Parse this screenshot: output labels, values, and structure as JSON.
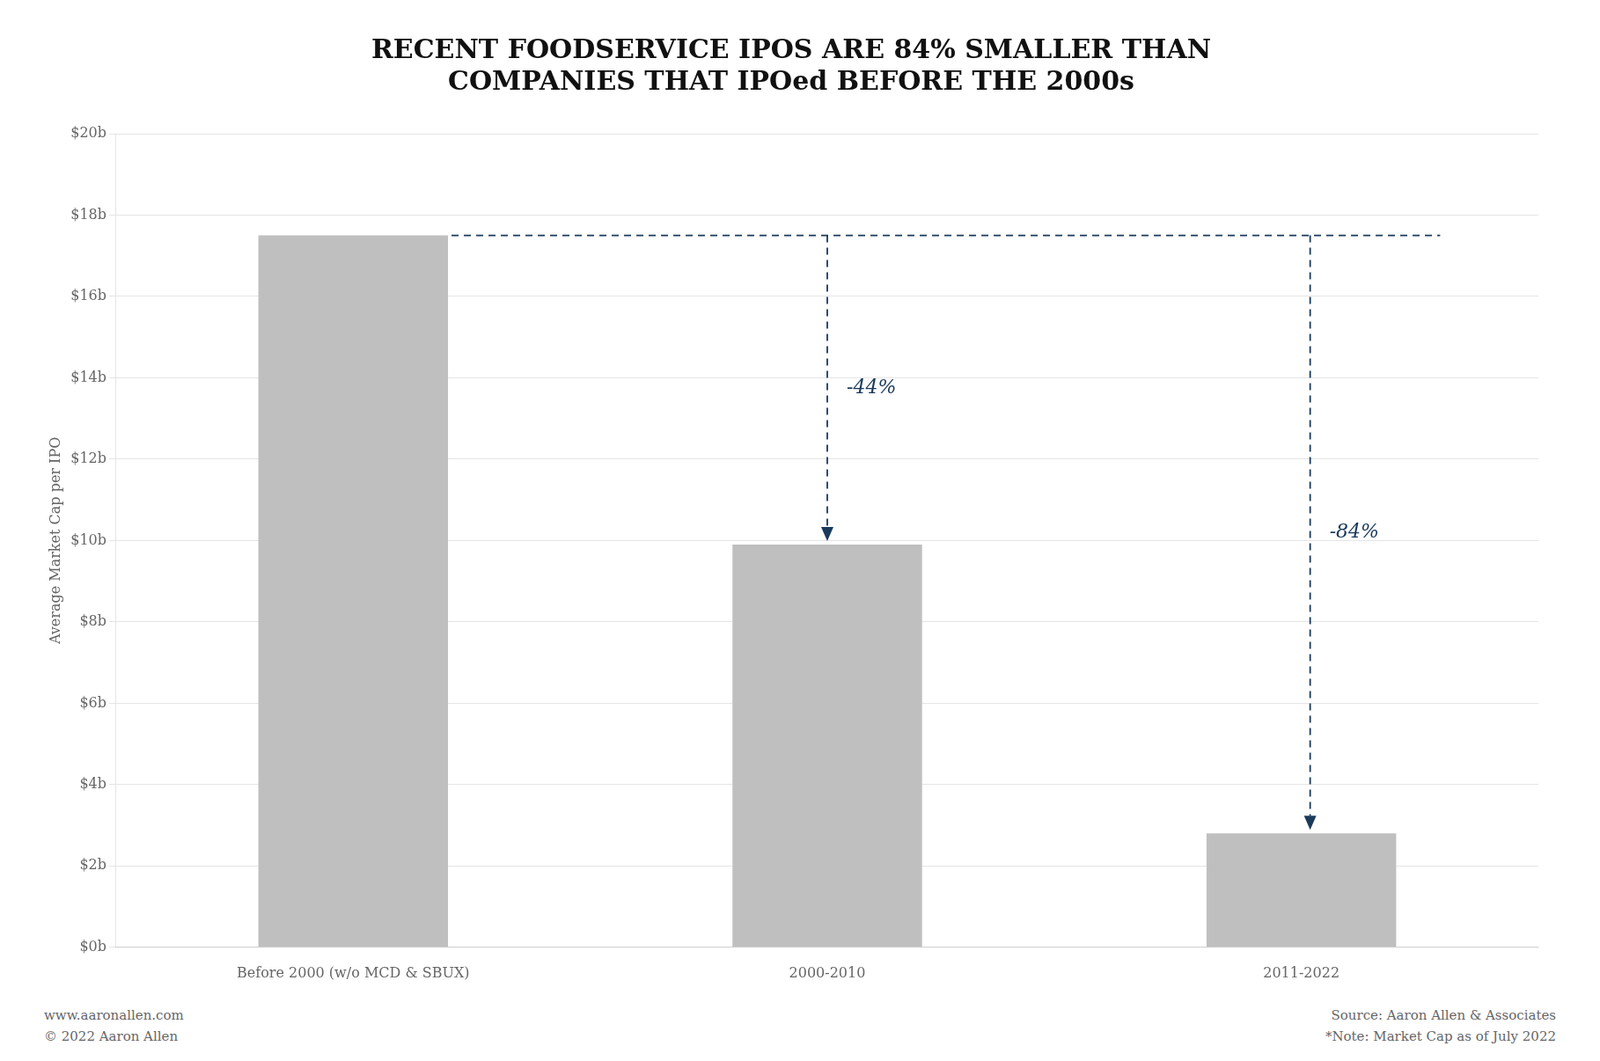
{
  "chart_data": {
    "type": "bar",
    "title": [
      "RECENT FOODSERVICE IPOS ARE 84% SMALLER THAN",
      "COMPANIES THAT IPOed BEFORE THE 2000s"
    ],
    "categories": [
      "Before 2000 (w/o MCD & SBUX)",
      "2000-2010",
      "2011-2022"
    ],
    "values": [
      17.5,
      9.9,
      2.8
    ],
    "color": "#c0bfc0",
    "ylabel": "Average Market Cap per IPO",
    "ylim": [
      0,
      20
    ],
    "yticks": [
      {
        "value": 0,
        "label": "$0b"
      },
      {
        "value": 2,
        "label": "$2b"
      },
      {
        "value": 4,
        "label": "$4b"
      },
      {
        "value": 6,
        "label": "$6b"
      },
      {
        "value": 8,
        "label": "$8b"
      },
      {
        "value": 10,
        "label": "$10b"
      },
      {
        "value": 12,
        "label": "$12b"
      },
      {
        "value": 14,
        "label": "$14b"
      },
      {
        "value": 16,
        "label": "$16b"
      },
      {
        "value": 18,
        "label": "$18b"
      },
      {
        "value": 20,
        "label": "$20b"
      }
    ],
    "grid": true,
    "legend": false,
    "annotations": [
      {
        "text": "-44%",
        "x": "2000-2010",
        "color": "#1a3a5c"
      },
      {
        "text": "-84%",
        "x": "2011-2022",
        "color": "#1a3a5c"
      }
    ],
    "footer": [
      [
        "www.aaronallen.com",
        "© 2022 Aaron Allen"
      ],
      [
        "Source: Aaron Allen & Associates",
        "*Note: Market Cap as of July 2022"
      ]
    ]
  }
}
